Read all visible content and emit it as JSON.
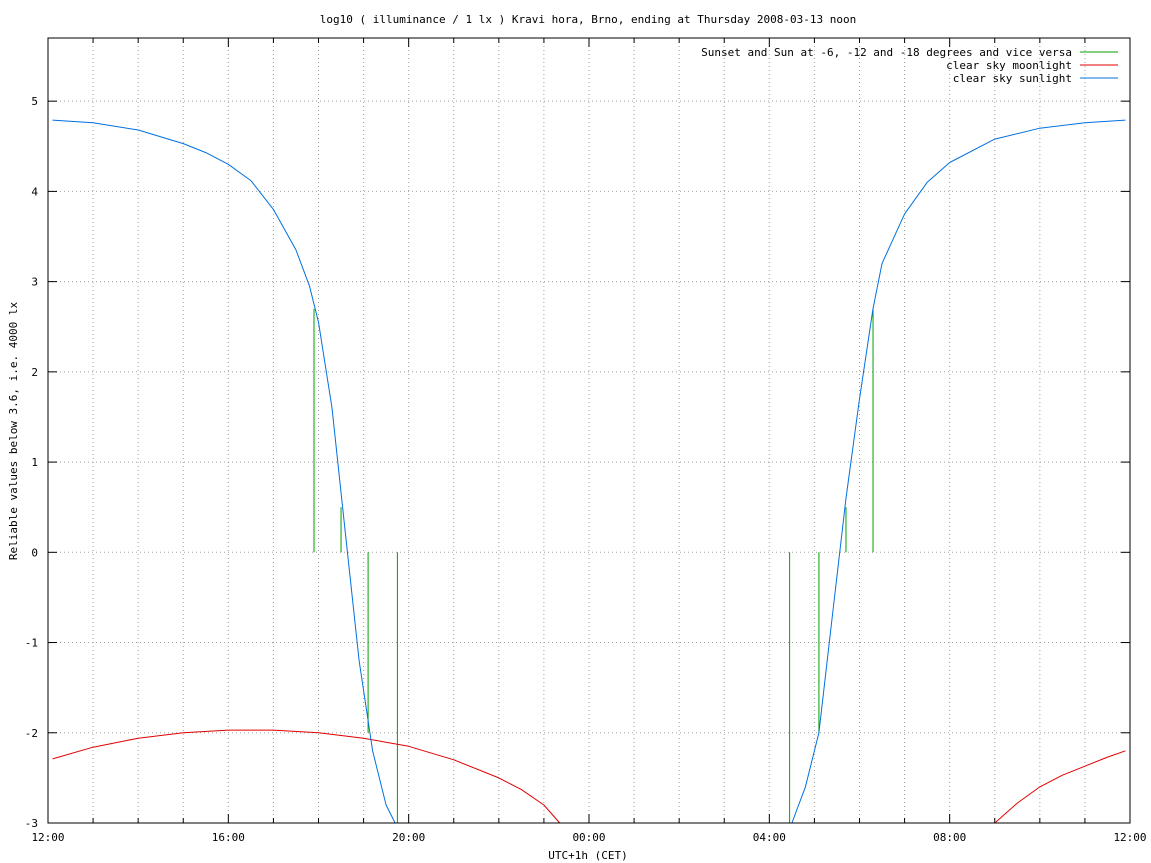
{
  "chart_data": {
    "type": "line",
    "title": "log10 ( illuminance / 1 lx ) Kravi hora, Brno, ending at Thursday 2008-03-13 noon",
    "xlabel": "UTC+1h (CET)",
    "ylabel": "Reliable values below 3.6, i.e. 4000 lx",
    "xlim": [
      0,
      24
    ],
    "ylim": [
      -3,
      5.7
    ],
    "grid": true,
    "legend_position": "top-right",
    "x_ticks": [
      {
        "x": 0,
        "label": "12:00"
      },
      {
        "x": 4,
        "label": "16:00"
      },
      {
        "x": 8,
        "label": "20:00"
      },
      {
        "x": 12,
        "label": "00:00"
      },
      {
        "x": 16,
        "label": "04:00"
      },
      {
        "x": 20,
        "label": "08:00"
      },
      {
        "x": 24,
        "label": "12:00"
      }
    ],
    "x_minor_step": 1,
    "y_ticks": [
      {
        "y": -3,
        "label": "-3"
      },
      {
        "y": -2,
        "label": "-2"
      },
      {
        "y": -1,
        "label": "-1"
      },
      {
        "y": 0,
        "label": "0"
      },
      {
        "y": 1,
        "label": "1"
      },
      {
        "y": 2,
        "label": "2"
      },
      {
        "y": 3,
        "label": "3"
      },
      {
        "y": 4,
        "label": "4"
      },
      {
        "y": 5,
        "label": "5"
      }
    ],
    "series": [
      {
        "name": "Sunset and Sun at -6, -12 and -18 degrees and vice versa",
        "kind": "impulses",
        "color": "#00a000",
        "points": [
          {
            "x": 5.9,
            "y": 2.7
          },
          {
            "x": 6.5,
            "y": 0.5
          },
          {
            "x": 7.1,
            "y": -2.0
          },
          {
            "x": 7.75,
            "y": -3.0
          },
          {
            "x": 16.45,
            "y": -3.0
          },
          {
            "x": 17.1,
            "y": -2.0
          },
          {
            "x": 17.7,
            "y": 0.5
          },
          {
            "x": 18.3,
            "y": 2.7
          }
        ]
      },
      {
        "name": "clear sky moonlight",
        "kind": "line",
        "color": "#e00000",
        "segments": [
          {
            "x": [
              0.1,
              1,
              2,
              3,
              4,
              5,
              6,
              7,
              8,
              9,
              10,
              10.5,
              11,
              11.35
            ],
            "y": [
              -2.29,
              -2.16,
              -2.06,
              -2.0,
              -1.97,
              -1.97,
              -2.0,
              -2.06,
              -2.15,
              -2.3,
              -2.5,
              -2.63,
              -2.8,
              -3.0
            ]
          },
          {
            "x": [
              21.0,
              21.5,
              22,
              22.5,
              23,
              23.5,
              23.9
            ],
            "y": [
              -3.0,
              -2.78,
              -2.6,
              -2.47,
              -2.37,
              -2.27,
              -2.2
            ]
          }
        ]
      },
      {
        "name": "clear sky sunlight",
        "kind": "line",
        "color": "#0070e0",
        "segments": [
          {
            "x": [
              0.1,
              1,
              2,
              3,
              3.5,
              4,
              4.5,
              5,
              5.5,
              5.8,
              6,
              6.3,
              6.6,
              6.9,
              7.2,
              7.5,
              7.7
            ],
            "y": [
              4.79,
              4.76,
              4.68,
              4.53,
              4.43,
              4.3,
              4.12,
              3.8,
              3.35,
              2.95,
              2.55,
              1.6,
              0.2,
              -1.2,
              -2.2,
              -2.8,
              -3.0
            ]
          },
          {
            "x": [
              16.5,
              16.8,
              17.1,
              17.4,
              17.7,
              18.0,
              18.3,
              18.5,
              19.0,
              19.5,
              20,
              21,
              22,
              23,
              23.9
            ],
            "y": [
              -3.0,
              -2.6,
              -2.0,
              -0.7,
              0.6,
              1.7,
              2.7,
              3.2,
              3.75,
              4.1,
              4.32,
              4.58,
              4.7,
              4.76,
              4.79
            ]
          }
        ]
      }
    ]
  }
}
